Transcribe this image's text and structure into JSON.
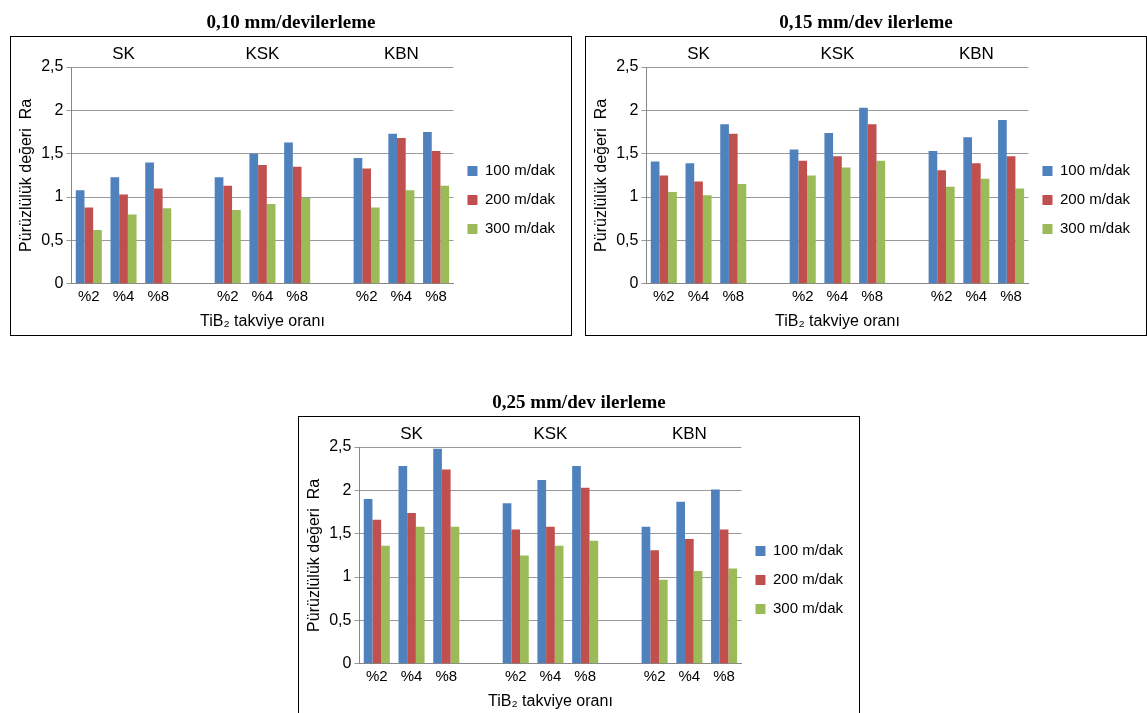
{
  "chart_data": [
    {
      "type": "bar",
      "title": "0,10 mm/devilerleme",
      "xlabel": "TiB₂ takviye oranı",
      "ylabel": "Pürüzlülük değeri  Ra",
      "categories": [
        "%2",
        "%4",
        "%8",
        null,
        "%2",
        "%4",
        "%8",
        null,
        "%2",
        "%4",
        "%8"
      ],
      "annotations": [
        "SK",
        "KSK",
        "KBN"
      ],
      "ylim": [
        0,
        2.5
      ],
      "yticks": [
        0,
        {
          "value": 0.5,
          "label": "0,5"
        },
        1,
        {
          "value": 1.5,
          "label": "1,5"
        },
        2,
        {
          "value": 2.5,
          "label": "2,5"
        }
      ],
      "grid": "y",
      "legend": "right",
      "series": [
        {
          "name": "100 m/dak",
          "color": "#4f81bd",
          "values": [
            1.08,
            1.23,
            1.4,
            null,
            1.23,
            1.5,
            1.63,
            null,
            1.45,
            1.73,
            1.75
          ]
        },
        {
          "name": "200 m/dak",
          "color": "#c0504d",
          "values": [
            0.88,
            1.03,
            1.1,
            null,
            1.13,
            1.37,
            1.35,
            null,
            1.33,
            1.68,
            1.53
          ]
        },
        {
          "name": "300 m/dak",
          "color": "#9bbb59",
          "values": [
            0.62,
            0.8,
            0.87,
            null,
            0.85,
            0.92,
            0.99,
            null,
            0.88,
            1.08,
            1.13
          ]
        }
      ]
    },
    {
      "type": "bar",
      "title": "0,15 mm/dev ilerleme",
      "xlabel": "TiB₂ takviye oranı",
      "ylabel": "Pürüzlülük değeri  Ra",
      "categories": [
        "%2",
        "%4",
        "%8",
        null,
        "%2",
        "%4",
        "%8",
        null,
        "%2",
        "%4",
        "%8"
      ],
      "annotations": [
        "SK",
        "KSK",
        "KBN"
      ],
      "ylim": [
        0,
        2.5
      ],
      "yticks": [
        0,
        {
          "value": 0.5,
          "label": "0,5"
        },
        1,
        {
          "value": 1.5,
          "label": "1,5"
        },
        2,
        {
          "value": 2.5,
          "label": "2,5"
        }
      ],
      "grid": "y",
      "legend": "right",
      "series": [
        {
          "name": "100 m/dak",
          "color": "#4f81bd",
          "values": [
            1.41,
            1.39,
            1.84,
            null,
            1.55,
            1.74,
            2.03,
            null,
            1.53,
            1.69,
            1.89
          ]
        },
        {
          "name": "200 m/dak",
          "color": "#c0504d",
          "values": [
            1.25,
            1.18,
            1.73,
            null,
            1.42,
            1.47,
            1.84,
            null,
            1.31,
            1.39,
            1.47
          ]
        },
        {
          "name": "300 m/dak",
          "color": "#9bbb59",
          "values": [
            1.06,
            1.02,
            1.15,
            null,
            1.25,
            1.34,
            1.42,
            null,
            1.12,
            1.21,
            1.1
          ]
        }
      ]
    },
    {
      "type": "bar",
      "title": "0,25 mm/dev ilerleme",
      "xlabel": "TiB₂ takviye oranı",
      "ylabel": "Pürüzlülük değeri  Ra",
      "categories": [
        "%2",
        "%4",
        "%8",
        null,
        "%2",
        "%4",
        "%8",
        null,
        "%2",
        "%4",
        "%8"
      ],
      "annotations": [
        "SK",
        "KSK",
        "KBN"
      ],
      "ylim": [
        0,
        2.5
      ],
      "yticks": [
        0,
        {
          "value": 0.5,
          "label": "0,5"
        },
        1,
        {
          "value": 1.5,
          "label": "1,5"
        },
        2,
        {
          "value": 2.5,
          "label": "2,5"
        }
      ],
      "grid": "y",
      "legend": "right",
      "series": [
        {
          "name": "100 m/dak",
          "color": "#4f81bd",
          "values": [
            1.9,
            2.28,
            2.48,
            null,
            1.85,
            2.12,
            2.28,
            null,
            1.58,
            1.87,
            2.01
          ]
        },
        {
          "name": "200 m/dak",
          "color": "#c0504d",
          "values": [
            1.66,
            1.74,
            2.24,
            null,
            1.55,
            1.58,
            2.03,
            null,
            1.31,
            1.44,
            1.55
          ]
        },
        {
          "name": "300 m/dak",
          "color": "#9bbb59",
          "values": [
            1.36,
            1.58,
            1.58,
            null,
            1.25,
            1.36,
            1.42,
            null,
            0.97,
            1.07,
            1.1
          ]
        }
      ]
    }
  ]
}
